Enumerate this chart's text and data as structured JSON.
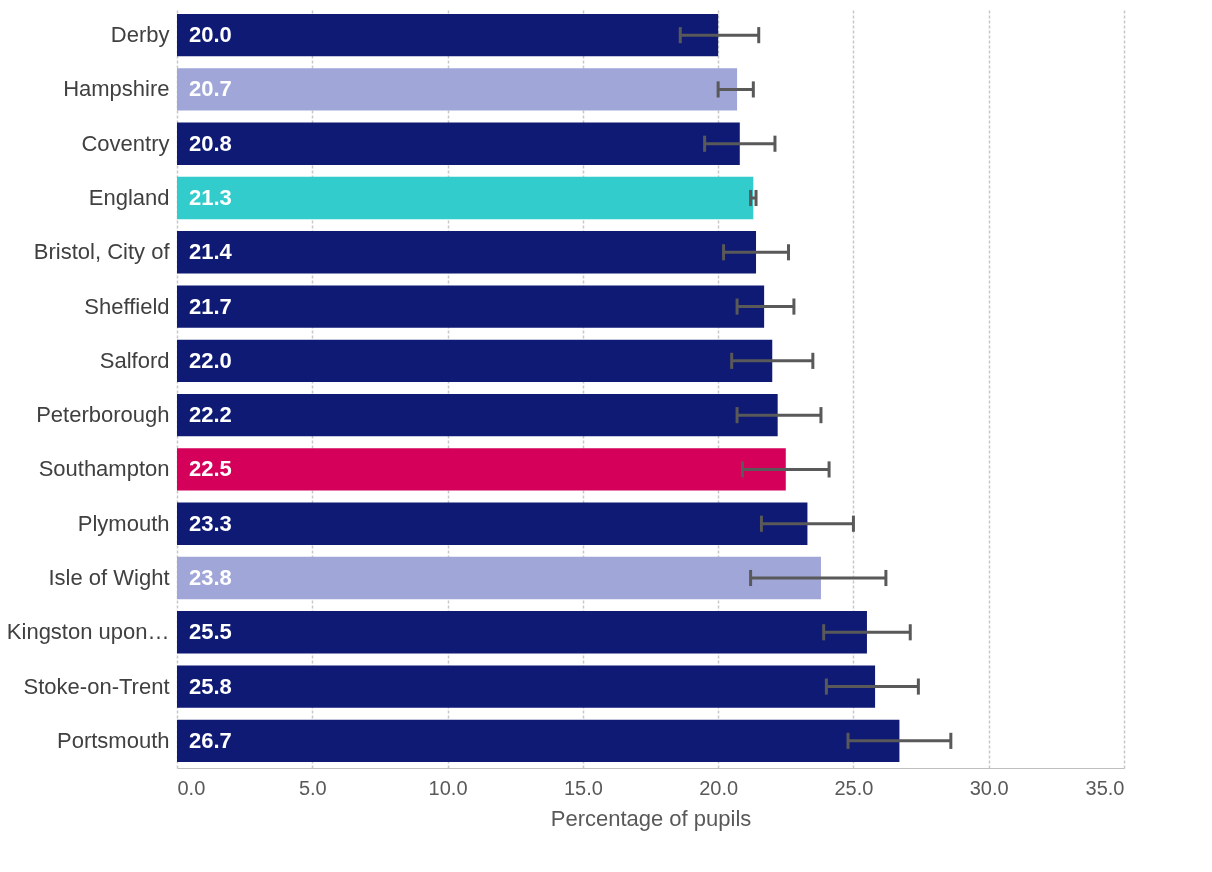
{
  "chart_data": {
    "type": "bar",
    "orientation": "horizontal",
    "xlabel": "Percentage of pupils",
    "categories": [
      "Derby",
      "Hampshire",
      "Coventry",
      "England",
      "Bristol, City of",
      "Sheffield",
      "Salford",
      "Peterborough",
      "Southampton",
      "Plymouth",
      "Isle of Wight",
      "Kingston upon…",
      "Stoke-on-Trent",
      "Portsmouth"
    ],
    "values": [
      20.0,
      20.7,
      20.8,
      21.3,
      21.4,
      21.7,
      22.0,
      22.2,
      22.5,
      23.3,
      23.8,
      25.5,
      25.8,
      26.7
    ],
    "value_labels": [
      "20.0",
      "20.7",
      "20.8",
      "21.3",
      "21.4",
      "21.7",
      "22.0",
      "22.2",
      "22.5",
      "23.3",
      "23.8",
      "25.5",
      "25.8",
      "26.7"
    ],
    "colors": [
      "#0e1a74",
      "#a0a6d8",
      "#0e1a74",
      "#33cccc",
      "#0e1a74",
      "#0e1a74",
      "#0e1a74",
      "#0e1a74",
      "#d4005a",
      "#0e1a74",
      "#a0a6d8",
      "#0e1a74",
      "#0e1a74",
      "#0e1a74"
    ],
    "errors": [
      [
        18.6,
        21.5
      ],
      [
        20.0,
        21.3
      ],
      [
        19.5,
        22.1
      ],
      [
        21.2,
        21.4
      ],
      [
        20.2,
        22.6
      ],
      [
        20.7,
        22.8
      ],
      [
        20.5,
        23.5
      ],
      [
        20.7,
        23.8
      ],
      [
        20.9,
        24.1
      ],
      [
        21.6,
        25.0
      ],
      [
        21.2,
        26.2
      ],
      [
        23.9,
        27.1
      ],
      [
        24.0,
        27.4
      ],
      [
        24.8,
        28.6
      ]
    ],
    "xlim": [
      0,
      35
    ],
    "xticks": [
      {
        "value": 0,
        "label": "0.0"
      },
      {
        "value": 5,
        "label": "5.0"
      },
      {
        "value": 10,
        "label": "10.0"
      },
      {
        "value": 15,
        "label": "15.0"
      },
      {
        "value": 20,
        "label": "20.0"
      },
      {
        "value": 25,
        "label": "25.0"
      },
      {
        "value": 30,
        "label": "30.0"
      },
      {
        "value": 35,
        "label": "35.0"
      }
    ],
    "grid": "x"
  }
}
